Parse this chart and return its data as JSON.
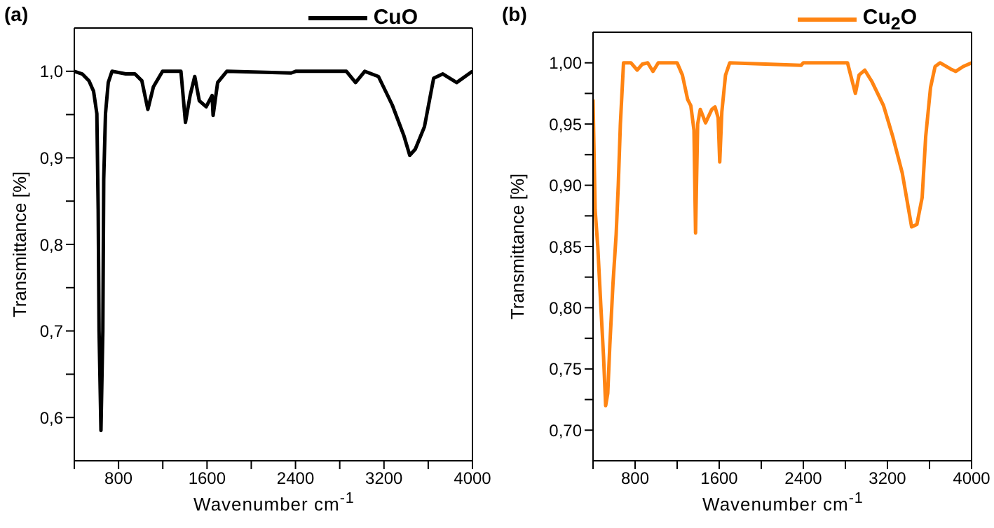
{
  "chart_data": [
    {
      "type": "line",
      "title": "(a)",
      "xlabel": "Wavenumber cm$^{-1}$",
      "ylabel": "Transmittance [%]",
      "xlim": [
        400,
        4000
      ],
      "ylim": [
        0.55,
        1.05
      ],
      "xticks": [
        {
          "value": 400,
          "label": null
        },
        800,
        {
          "value": 1200,
          "label": null
        },
        1600,
        {
          "value": 2000,
          "label": null
        },
        2400,
        {
          "value": 2800,
          "label": null
        },
        3200,
        {
          "value": 3600,
          "label": null
        },
        4000
      ],
      "yticks": [
        {
          "value": 0.6,
          "label": "0,6"
        },
        {
          "value": 0.65,
          "label": null
        },
        {
          "value": 0.7,
          "label": "0,7"
        },
        {
          "value": 0.75,
          "label": null
        },
        {
          "value": 0.8,
          "label": "0,8"
        },
        {
          "value": 0.85,
          "label": null
        },
        {
          "value": 0.9,
          "label": "0,9"
        },
        {
          "value": 0.95,
          "label": null
        },
        {
          "value": 1.0,
          "label": "1,0"
        }
      ],
      "legend": "top right",
      "series": [
        {
          "name": "CuO",
          "color": "#000000",
          "x": [
            400,
            471,
            533,
            574,
            604,
            616,
            624,
            641,
            658,
            666,
            682,
            707,
            741,
            865,
            948,
            1011,
            1065,
            1115,
            1198,
            1364,
            1405,
            1447,
            1489,
            1530,
            1592,
            1646,
            1655,
            1696,
            1779,
            2361,
            2402,
            2860,
            2943,
            3026,
            3150,
            3275,
            3379,
            3433,
            3483,
            3566,
            3649,
            3732,
            3857,
            4000
          ],
          "values": [
            1.0,
            0.997,
            0.989,
            0.977,
            0.951,
            0.84,
            0.7,
            0.585,
            0.7,
            0.875,
            0.951,
            0.987,
            1.0,
            0.997,
            0.997,
            0.989,
            0.956,
            0.982,
            1.0,
            1.0,
            0.941,
            0.972,
            0.994,
            0.966,
            0.959,
            0.972,
            0.949,
            0.987,
            1.0,
            0.998,
            1.0,
            1.0,
            0.987,
            1.0,
            0.994,
            0.961,
            0.926,
            0.903,
            0.91,
            0.936,
            0.992,
            0.997,
            0.987,
            1.0
          ]
        }
      ]
    },
    {
      "type": "line",
      "title": "(b)",
      "xlabel": "Wavenumber cm$^{-1}$",
      "ylabel": "Transmittance [%]",
      "xlim": [
        400,
        4000
      ],
      "ylim": [
        0.675,
        1.025
      ],
      "xticks": [
        {
          "value": 400,
          "label": null
        },
        800,
        {
          "value": 1200,
          "label": null
        },
        1600,
        {
          "value": 2000,
          "label": null
        },
        2400,
        {
          "value": 2800,
          "label": null
        },
        3200,
        {
          "value": 3600,
          "label": null
        },
        4000
      ],
      "yticks": [
        {
          "value": 0.7,
          "label": "0,70"
        },
        {
          "value": 0.725,
          "label": null
        },
        {
          "value": 0.75,
          "label": "0,75"
        },
        {
          "value": 0.775,
          "label": null
        },
        {
          "value": 0.8,
          "label": "0,80"
        },
        {
          "value": 0.825,
          "label": null
        },
        {
          "value": 0.85,
          "label": "0,85"
        },
        {
          "value": 0.875,
          "label": null
        },
        {
          "value": 0.9,
          "label": "0,90"
        },
        {
          "value": 0.925,
          "label": null
        },
        {
          "value": 0.95,
          "label": "0,95"
        },
        {
          "value": 0.975,
          "label": null
        },
        {
          "value": 1.0,
          "label": "1,00"
        }
      ],
      "legend": "top right",
      "series": [
        {
          "name": "Cu$_{2}$O",
          "color": "#ff8412",
          "x": [
            400,
            420,
            445,
            475,
            500,
            520,
            540,
            560,
            590,
            620,
            640,
            660,
            690,
            760,
            820,
            870,
            920,
            970,
            1020,
            1200,
            1250,
            1300,
            1330,
            1360,
            1375,
            1395,
            1420,
            1470,
            1530,
            1560,
            1590,
            1605,
            1625,
            1660,
            1700,
            2380,
            2400,
            2820,
            2850,
            2895,
            2930,
            2985,
            3050,
            3163,
            3250,
            3341,
            3430,
            3480,
            3530,
            3564,
            3610,
            3653,
            3700,
            3800,
            3850,
            3920,
            4000
          ],
          "values": [
            0.97,
            0.88,
            0.85,
            0.8,
            0.76,
            0.72,
            0.73,
            0.77,
            0.82,
            0.86,
            0.9,
            0.95,
            1.0,
            1.0,
            0.994,
            0.999,
            1.0,
            0.993,
            1.0,
            1.0,
            0.99,
            0.97,
            0.965,
            0.945,
            0.861,
            0.95,
            0.962,
            0.951,
            0.962,
            0.964,
            0.955,
            0.919,
            0.96,
            0.99,
            1.0,
            0.998,
            1.0,
            1.0,
            0.99,
            0.975,
            0.99,
            0.994,
            0.985,
            0.965,
            0.94,
            0.91,
            0.866,
            0.868,
            0.89,
            0.94,
            0.98,
            0.997,
            1.0,
            0.995,
            0.993,
            0.997,
            1.0
          ]
        }
      ]
    }
  ]
}
